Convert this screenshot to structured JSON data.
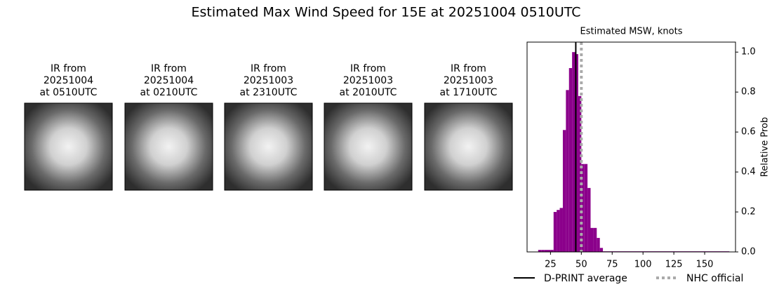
{
  "title": "Estimated Max Wind Speed for 15E at 20251004 0510UTC",
  "panels": [
    {
      "lines": [
        "IR from",
        "20251004",
        "at 0510UTC"
      ]
    },
    {
      "lines": [
        "IR from",
        "20251004",
        "at 0210UTC"
      ]
    },
    {
      "lines": [
        "IR from",
        "20251003",
        "at 2310UTC"
      ]
    },
    {
      "lines": [
        "IR from",
        "20251003",
        "at 2010UTC"
      ]
    },
    {
      "lines": [
        "IR from",
        "20251003",
        "at 1710UTC"
      ]
    }
  ],
  "chart_data": {
    "type": "histogram",
    "title": "Estimated MSW, knots",
    "y_label": "Relative Prob",
    "color": "#8b008b",
    "bins": [
      15,
      17.5,
      20,
      22.5,
      25,
      27.5,
      30,
      32.5,
      35,
      37.5,
      40,
      42.5,
      45,
      47.5,
      50,
      52.5,
      55,
      57.5,
      60,
      62.5,
      65,
      67.5,
      170
    ],
    "values": [
      0.01,
      0.01,
      0.01,
      0.01,
      0.01,
      0.2,
      0.21,
      0.22,
      0.61,
      0.81,
      0.92,
      1.0,
      0.99,
      0.78,
      0.44,
      0.44,
      0.32,
      0.12,
      0.12,
      0.07,
      0.02,
      0.003
    ],
    "xlim": [
      6,
      175
    ],
    "ylim": [
      0,
      1.05
    ],
    "xticks": [
      25,
      50,
      75,
      100,
      125,
      150
    ],
    "yticks": [
      {
        "value": 0,
        "label": "0.0"
      },
      0.2,
      0.4,
      0.6,
      0.8,
      {
        "value": 1,
        "label": "1.0"
      }
    ],
    "lines": [
      {
        "name": "D-PRINT average",
        "x": 45.5,
        "color": "#000000",
        "style": "solid"
      },
      {
        "name": "NHC official",
        "x": 50,
        "color": "#aaaaaa",
        "style": "dotted"
      }
    ]
  }
}
